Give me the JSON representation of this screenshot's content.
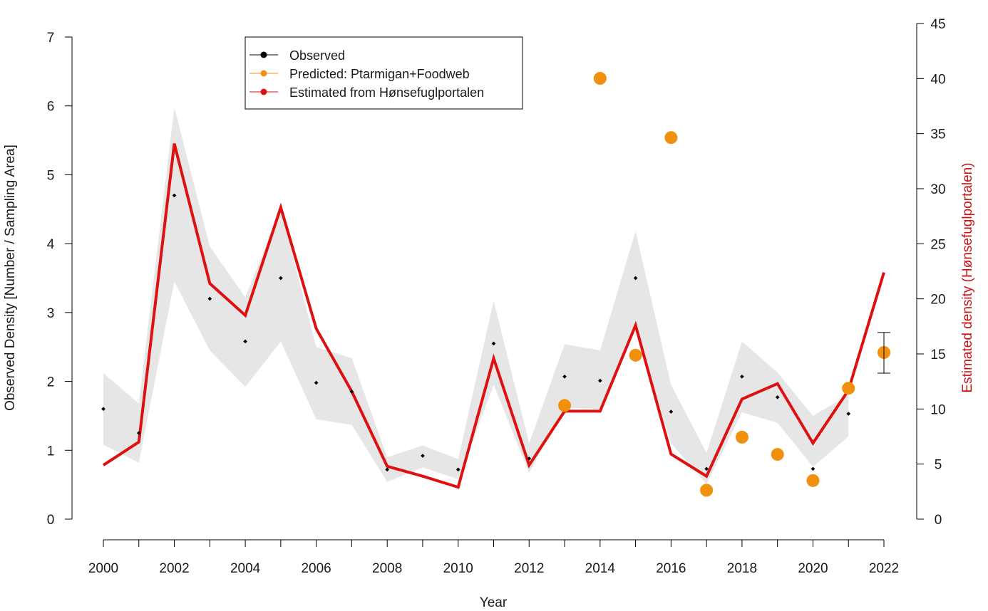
{
  "chart_data": {
    "type": "line",
    "xlabel": "Year",
    "ylabel_left": "Observed Density [Number / Sampling Area]",
    "ylabel_right": "Estimated density (Hønsefuglportalen)",
    "xlim": [
      2000,
      2022
    ],
    "ylim_left": [
      0,
      7
    ],
    "ylim_right": [
      0,
      45
    ],
    "x_ticks": [
      2000,
      2002,
      2004,
      2006,
      2008,
      2010,
      2012,
      2014,
      2016,
      2018,
      2020,
      2022
    ],
    "y_left_ticks": [
      0,
      1,
      2,
      3,
      4,
      5,
      6,
      7
    ],
    "y_right_ticks": [
      0,
      5,
      10,
      15,
      20,
      25,
      30,
      35,
      40,
      45
    ],
    "grid": false,
    "legend_position": "top-center",
    "colors": {
      "observed": "#000000",
      "predicted": "#f0900c",
      "estimated": "#dd1111",
      "band": "#e6e6e6",
      "right_axis_title": "#cc1111"
    },
    "series": [
      {
        "name": "Observed",
        "axis": "left",
        "x": [
          2000,
          2001,
          2002,
          2003,
          2004,
          2005,
          2006,
          2007,
          2008,
          2009,
          2010,
          2011,
          2012,
          2013,
          2014,
          2015,
          2016,
          2017,
          2018,
          2019,
          2020,
          2021
        ],
        "y": [
          1.6,
          1.25,
          4.7,
          3.2,
          2.58,
          3.5,
          1.98,
          1.85,
          0.72,
          0.92,
          0.72,
          2.55,
          0.88,
          2.07,
          2.01,
          3.5,
          1.56,
          0.73,
          2.07,
          1.77,
          0.73,
          1.53
        ]
      },
      {
        "name": "Predicted: Ptarmigan+Foodweb",
        "axis": "left",
        "x": [
          2013,
          2014,
          2015,
          2016,
          2017,
          2018,
          2019,
          2020,
          2021,
          2022
        ],
        "y": [
          1.65,
          6.4,
          2.38,
          5.54,
          0.42,
          1.19,
          0.94,
          0.56,
          1.9,
          2.42
        ]
      },
      {
        "name": "Estimated from Hønsefuglportalen",
        "axis": "right",
        "x": [
          2000,
          2001,
          2002,
          2003,
          2004,
          2005,
          2006,
          2007,
          2008,
          2009,
          2010,
          2011,
          2012,
          2013,
          2014,
          2015,
          2016,
          2017,
          2018,
          2019,
          2020,
          2021,
          2022
        ],
        "y": [
          4.9,
          7.0,
          34.1,
          21.4,
          18.5,
          28.3,
          17.3,
          11.6,
          4.8,
          3.9,
          2.9,
          14.6,
          4.9,
          9.8,
          9.8,
          17.6,
          5.9,
          3.9,
          10.9,
          12.3,
          6.9,
          11.7,
          22.4
        ]
      }
    ],
    "confidence_band": {
      "axis": "left",
      "x": [
        2000,
        2001,
        2002,
        2003,
        2004,
        2005,
        2006,
        2007,
        2008,
        2009,
        2010,
        2011,
        2012,
        2013,
        2014,
        2015,
        2016,
        2017,
        2018,
        2019,
        2020,
        2021
      ],
      "lower": [
        1.08,
        0.82,
        3.45,
        2.45,
        1.92,
        2.58,
        1.45,
        1.37,
        0.54,
        0.75,
        0.58,
        1.95,
        0.67,
        1.62,
        1.6,
        2.78,
        1.1,
        0.51,
        1.55,
        1.4,
        0.76,
        1.2
      ],
      "upper": [
        2.12,
        1.68,
        5.98,
        3.96,
        3.22,
        4.5,
        2.5,
        2.34,
        0.9,
        1.07,
        0.87,
        3.17,
        1.1,
        2.54,
        2.45,
        4.18,
        1.95,
        0.96,
        2.58,
        2.13,
        1.5,
        1.8
      ]
    },
    "error_bar": {
      "axis": "left",
      "x": 2022,
      "lower": 2.12,
      "upper": 2.71
    }
  }
}
